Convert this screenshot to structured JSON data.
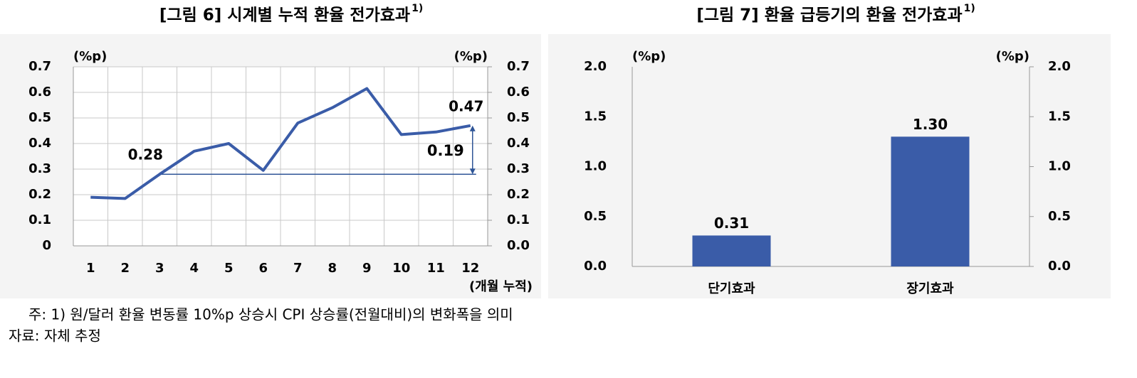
{
  "chart_data": [
    {
      "type": "line",
      "title": "[그림 6] 시계별 누적 환율 전가효과",
      "title_note": "1)",
      "y_unit": "(%p)",
      "y2_unit": "(%p)",
      "x_label": "(개월 누적)",
      "categories": [
        "1",
        "2",
        "3",
        "4",
        "5",
        "6",
        "7",
        "8",
        "9",
        "10",
        "11",
        "12"
      ],
      "values": [
        0.19,
        0.185,
        0.28,
        0.37,
        0.4,
        0.295,
        0.48,
        0.54,
        0.615,
        0.435,
        0.445,
        0.47
      ],
      "value_labels": [
        null,
        null,
        "0.28",
        null,
        null,
        null,
        null,
        null,
        null,
        null,
        null,
        "0.47"
      ],
      "color": "#3a5ca8",
      "label_color": "#2f5597",
      "last_label_color": "#b03020",
      "difference": 0.19,
      "difference_color": "#2f5597",
      "ylim": [
        0,
        0.7
      ],
      "yticks": [
        0,
        0.1,
        0.2,
        0.3,
        0.4,
        0.5,
        0.6,
        0.7
      ],
      "y2lim": [
        0,
        0.7
      ],
      "y2ticks": [
        {
          "value": 0,
          "label": "0.0"
        },
        0.1,
        0.2,
        0.3,
        0.4,
        0.5,
        0.6,
        0.7
      ],
      "grid": true
    },
    {
      "type": "bar",
      "title": "[그림 7] 환율 급등기의 환율 전가효과",
      "title_note": "1)",
      "y_unit": "(%p)",
      "y2_unit": "(%p)",
      "categories": [
        "단기효과",
        "장기효과"
      ],
      "values": [
        0.31,
        1.3
      ],
      "value_labels": [
        "0.31",
        "1.30"
      ],
      "color": "#3a5ca8",
      "label_color": "#2f5597",
      "ylim": [
        0,
        2
      ],
      "yticks": [
        {
          "value": 0,
          "label": "0.0"
        },
        0.5,
        {
          "value": 1,
          "label": "1.0"
        },
        1.5,
        {
          "value": 2,
          "label": "2.0"
        }
      ],
      "y2lim": [
        0,
        2
      ],
      "y2ticks": [
        {
          "value": 0,
          "label": "0.0"
        },
        0.5,
        {
          "value": 1,
          "label": "1.0"
        },
        1.5,
        {
          "value": 2,
          "label": "2.0"
        }
      ],
      "grid": false
    }
  ],
  "notes": [
    "주: 1) 원/달러 환율 변동률 10%p 상승시 CPI 상승률(전월대비)의 변화폭을 의미",
    "자료: 자체 추정"
  ]
}
